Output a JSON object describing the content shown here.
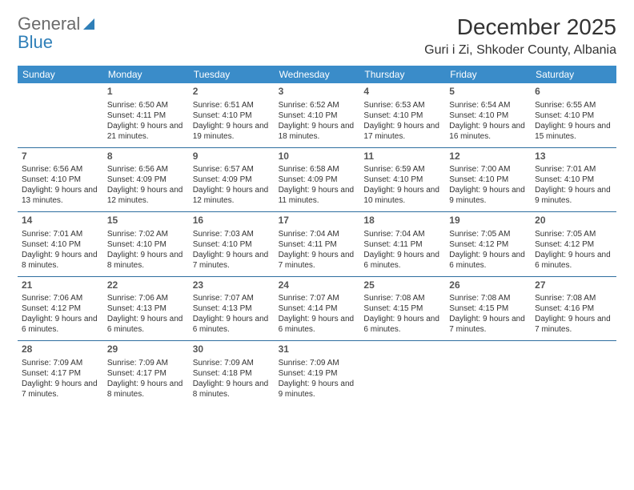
{
  "brand": {
    "word1": "General",
    "word2": "Blue"
  },
  "title": "December 2025",
  "location": "Guri i Zi, Shkoder County, Albania",
  "colors": {
    "header_bg": "#3a8cc9",
    "header_text": "#ffffff",
    "rule": "#2f6fa0",
    "body_text": "#333333",
    "brand_gray": "#6b6b6b",
    "brand_blue": "#2f7fb8",
    "background": "#ffffff"
  },
  "weekdays": [
    "Sunday",
    "Monday",
    "Tuesday",
    "Wednesday",
    "Thursday",
    "Friday",
    "Saturday"
  ],
  "weeks": [
    [
      {
        "num": "",
        "sunrise": "",
        "sunset": "",
        "daylight": ""
      },
      {
        "num": "1",
        "sunrise": "Sunrise: 6:50 AM",
        "sunset": "Sunset: 4:11 PM",
        "daylight": "Daylight: 9 hours and 21 minutes."
      },
      {
        "num": "2",
        "sunrise": "Sunrise: 6:51 AM",
        "sunset": "Sunset: 4:10 PM",
        "daylight": "Daylight: 9 hours and 19 minutes."
      },
      {
        "num": "3",
        "sunrise": "Sunrise: 6:52 AM",
        "sunset": "Sunset: 4:10 PM",
        "daylight": "Daylight: 9 hours and 18 minutes."
      },
      {
        "num": "4",
        "sunrise": "Sunrise: 6:53 AM",
        "sunset": "Sunset: 4:10 PM",
        "daylight": "Daylight: 9 hours and 17 minutes."
      },
      {
        "num": "5",
        "sunrise": "Sunrise: 6:54 AM",
        "sunset": "Sunset: 4:10 PM",
        "daylight": "Daylight: 9 hours and 16 minutes."
      },
      {
        "num": "6",
        "sunrise": "Sunrise: 6:55 AM",
        "sunset": "Sunset: 4:10 PM",
        "daylight": "Daylight: 9 hours and 15 minutes."
      }
    ],
    [
      {
        "num": "7",
        "sunrise": "Sunrise: 6:56 AM",
        "sunset": "Sunset: 4:10 PM",
        "daylight": "Daylight: 9 hours and 13 minutes."
      },
      {
        "num": "8",
        "sunrise": "Sunrise: 6:56 AM",
        "sunset": "Sunset: 4:09 PM",
        "daylight": "Daylight: 9 hours and 12 minutes."
      },
      {
        "num": "9",
        "sunrise": "Sunrise: 6:57 AM",
        "sunset": "Sunset: 4:09 PM",
        "daylight": "Daylight: 9 hours and 12 minutes."
      },
      {
        "num": "10",
        "sunrise": "Sunrise: 6:58 AM",
        "sunset": "Sunset: 4:09 PM",
        "daylight": "Daylight: 9 hours and 11 minutes."
      },
      {
        "num": "11",
        "sunrise": "Sunrise: 6:59 AM",
        "sunset": "Sunset: 4:10 PM",
        "daylight": "Daylight: 9 hours and 10 minutes."
      },
      {
        "num": "12",
        "sunrise": "Sunrise: 7:00 AM",
        "sunset": "Sunset: 4:10 PM",
        "daylight": "Daylight: 9 hours and 9 minutes."
      },
      {
        "num": "13",
        "sunrise": "Sunrise: 7:01 AM",
        "sunset": "Sunset: 4:10 PM",
        "daylight": "Daylight: 9 hours and 9 minutes."
      }
    ],
    [
      {
        "num": "14",
        "sunrise": "Sunrise: 7:01 AM",
        "sunset": "Sunset: 4:10 PM",
        "daylight": "Daylight: 9 hours and 8 minutes."
      },
      {
        "num": "15",
        "sunrise": "Sunrise: 7:02 AM",
        "sunset": "Sunset: 4:10 PM",
        "daylight": "Daylight: 9 hours and 8 minutes."
      },
      {
        "num": "16",
        "sunrise": "Sunrise: 7:03 AM",
        "sunset": "Sunset: 4:10 PM",
        "daylight": "Daylight: 9 hours and 7 minutes."
      },
      {
        "num": "17",
        "sunrise": "Sunrise: 7:04 AM",
        "sunset": "Sunset: 4:11 PM",
        "daylight": "Daylight: 9 hours and 7 minutes."
      },
      {
        "num": "18",
        "sunrise": "Sunrise: 7:04 AM",
        "sunset": "Sunset: 4:11 PM",
        "daylight": "Daylight: 9 hours and 6 minutes."
      },
      {
        "num": "19",
        "sunrise": "Sunrise: 7:05 AM",
        "sunset": "Sunset: 4:12 PM",
        "daylight": "Daylight: 9 hours and 6 minutes."
      },
      {
        "num": "20",
        "sunrise": "Sunrise: 7:05 AM",
        "sunset": "Sunset: 4:12 PM",
        "daylight": "Daylight: 9 hours and 6 minutes."
      }
    ],
    [
      {
        "num": "21",
        "sunrise": "Sunrise: 7:06 AM",
        "sunset": "Sunset: 4:12 PM",
        "daylight": "Daylight: 9 hours and 6 minutes."
      },
      {
        "num": "22",
        "sunrise": "Sunrise: 7:06 AM",
        "sunset": "Sunset: 4:13 PM",
        "daylight": "Daylight: 9 hours and 6 minutes."
      },
      {
        "num": "23",
        "sunrise": "Sunrise: 7:07 AM",
        "sunset": "Sunset: 4:13 PM",
        "daylight": "Daylight: 9 hours and 6 minutes."
      },
      {
        "num": "24",
        "sunrise": "Sunrise: 7:07 AM",
        "sunset": "Sunset: 4:14 PM",
        "daylight": "Daylight: 9 hours and 6 minutes."
      },
      {
        "num": "25",
        "sunrise": "Sunrise: 7:08 AM",
        "sunset": "Sunset: 4:15 PM",
        "daylight": "Daylight: 9 hours and 6 minutes."
      },
      {
        "num": "26",
        "sunrise": "Sunrise: 7:08 AM",
        "sunset": "Sunset: 4:15 PM",
        "daylight": "Daylight: 9 hours and 7 minutes."
      },
      {
        "num": "27",
        "sunrise": "Sunrise: 7:08 AM",
        "sunset": "Sunset: 4:16 PM",
        "daylight": "Daylight: 9 hours and 7 minutes."
      }
    ],
    [
      {
        "num": "28",
        "sunrise": "Sunrise: 7:09 AM",
        "sunset": "Sunset: 4:17 PM",
        "daylight": "Daylight: 9 hours and 7 minutes."
      },
      {
        "num": "29",
        "sunrise": "Sunrise: 7:09 AM",
        "sunset": "Sunset: 4:17 PM",
        "daylight": "Daylight: 9 hours and 8 minutes."
      },
      {
        "num": "30",
        "sunrise": "Sunrise: 7:09 AM",
        "sunset": "Sunset: 4:18 PM",
        "daylight": "Daylight: 9 hours and 8 minutes."
      },
      {
        "num": "31",
        "sunrise": "Sunrise: 7:09 AM",
        "sunset": "Sunset: 4:19 PM",
        "daylight": "Daylight: 9 hours and 9 minutes."
      },
      {
        "num": "",
        "sunrise": "",
        "sunset": "",
        "daylight": ""
      },
      {
        "num": "",
        "sunrise": "",
        "sunset": "",
        "daylight": ""
      },
      {
        "num": "",
        "sunrise": "",
        "sunset": "",
        "daylight": ""
      }
    ]
  ]
}
